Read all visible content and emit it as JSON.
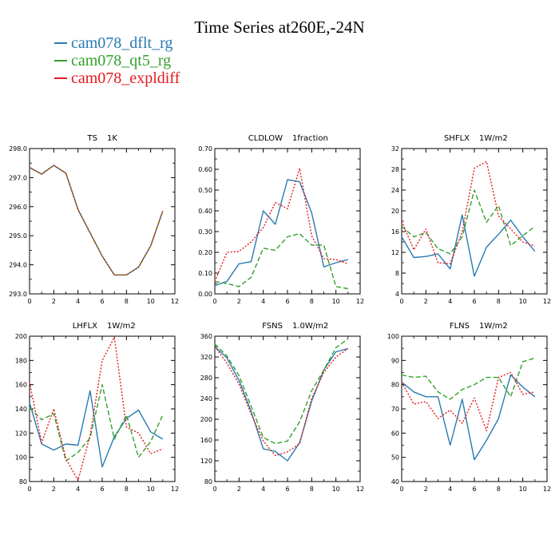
{
  "title": "Time Series at260E,-24N",
  "legend": [
    {
      "name": "cam078_dflt_rg",
      "color": "#2a7ab0"
    },
    {
      "name": "cam078_qt5_rg",
      "color": "#33a02c"
    },
    {
      "name": "cam078_expldiff",
      "color": "#e31a1c"
    }
  ],
  "chart_data": [
    {
      "type": "line",
      "title": "TS",
      "units": "1K",
      "xlim": [
        0,
        12
      ],
      "xticks": [
        0,
        2,
        4,
        6,
        8,
        10,
        12
      ],
      "ylim": [
        293,
        298
      ],
      "yticks": [
        "293.0",
        "294.0",
        "295.0",
        "296.0",
        "297.0",
        "298.0"
      ],
      "x": [
        0,
        1,
        2,
        3,
        4,
        5,
        6,
        7,
        8,
        9,
        10,
        11
      ],
      "series": [
        {
          "name": "cam078_dflt_rg",
          "color": "#2a7ab0",
          "dash": "",
          "values": [
            297.35,
            297.12,
            297.42,
            297.15,
            295.9,
            295.1,
            294.3,
            293.65,
            293.65,
            293.92,
            294.65,
            295.85
          ]
        },
        {
          "name": "cam078_qt5_rg",
          "color": "#33a02c",
          "dash": "6,3",
          "values": [
            297.35,
            297.12,
            297.42,
            297.15,
            295.9,
            295.1,
            294.3,
            293.65,
            293.65,
            293.92,
            294.65,
            295.85
          ]
        },
        {
          "name": "cam078_expldiff",
          "color": "#e31a1c",
          "dash": "2,2",
          "values": [
            297.35,
            297.12,
            297.42,
            297.15,
            295.9,
            295.1,
            294.3,
            293.65,
            293.65,
            293.92,
            294.65,
            295.85
          ]
        }
      ]
    },
    {
      "type": "line",
      "title": "CLDLOW",
      "units": "1fraction",
      "xlim": [
        0,
        12
      ],
      "xticks": [
        0,
        2,
        4,
        6,
        8,
        10,
        12
      ],
      "ylim": [
        0,
        0.7
      ],
      "yticks": [
        "0.00",
        "0.10",
        "0.20",
        "0.30",
        "0.40",
        "0.50",
        "0.60",
        "0.70"
      ],
      "x": [
        0,
        1,
        2,
        3,
        4,
        5,
        6,
        7,
        8,
        9,
        10,
        11
      ],
      "series": [
        {
          "name": "cam078_dflt_rg",
          "color": "#2a7ab0",
          "dash": "",
          "values": [
            0.04,
            0.06,
            0.145,
            0.155,
            0.4,
            0.335,
            0.55,
            0.54,
            0.39,
            0.13,
            0.15,
            0.165
          ]
        },
        {
          "name": "cam078_qt5_rg",
          "color": "#33a02c",
          "dash": "6,3",
          "values": [
            0.06,
            0.05,
            0.035,
            0.08,
            0.22,
            0.21,
            0.275,
            0.29,
            0.235,
            0.235,
            0.035,
            0.025
          ]
        },
        {
          "name": "cam078_expldiff",
          "color": "#e31a1c",
          "dash": "2,2",
          "values": [
            0.06,
            0.2,
            0.205,
            0.25,
            0.32,
            0.44,
            0.41,
            0.605,
            0.28,
            0.17,
            0.165,
            0.145
          ]
        }
      ]
    },
    {
      "type": "line",
      "title": "SHFLX",
      "units": "1W/m2",
      "xlim": [
        0,
        12
      ],
      "xticks": [
        0,
        2,
        4,
        6,
        8,
        10,
        12
      ],
      "ylim": [
        4,
        32
      ],
      "yticks": [
        "4",
        "8",
        "12",
        "16",
        "20",
        "24",
        "28",
        "32"
      ],
      "x": [
        0,
        1,
        2,
        3,
        4,
        5,
        6,
        7,
        8,
        9,
        10,
        11
      ],
      "series": [
        {
          "name": "cam078_dflt_rg",
          "color": "#2a7ab0",
          "dash": "",
          "values": [
            15,
            11,
            11.2,
            11.7,
            8.8,
            19.2,
            7.4,
            13,
            15.5,
            18.2,
            15,
            12.2
          ]
        },
        {
          "name": "cam078_qt5_rg",
          "color": "#33a02c",
          "dash": "6,3",
          "values": [
            17,
            15,
            15.8,
            12.7,
            11.7,
            15,
            24,
            17.8,
            21,
            13.3,
            15.2,
            17
          ]
        },
        {
          "name": "cam078_expldiff",
          "color": "#e31a1c",
          "dash": "2,2",
          "values": [
            18,
            12.5,
            16.5,
            10,
            9.8,
            16,
            28.2,
            29.5,
            19,
            16.5,
            14,
            13.2
          ]
        }
      ]
    },
    {
      "type": "line",
      "title": "LHFLX",
      "units": "1W/m2",
      "xlim": [
        0,
        12
      ],
      "xticks": [
        0,
        2,
        4,
        6,
        8,
        10,
        12
      ],
      "ylim": [
        80,
        200
      ],
      "yticks": [
        "80",
        "100",
        "120",
        "140",
        "160",
        "180",
        "200"
      ],
      "x": [
        0,
        1,
        2,
        3,
        4,
        5,
        6,
        7,
        8,
        9,
        10,
        11
      ],
      "series": [
        {
          "name": "cam078_dflt_rg",
          "color": "#2a7ab0",
          "dash": "",
          "values": [
            145,
            111,
            106,
            111,
            110,
            155,
            92,
            117,
            132,
            139,
            121,
            115
          ]
        },
        {
          "name": "cam078_qt5_rg",
          "color": "#33a02c",
          "dash": "6,3",
          "values": [
            141,
            131,
            136,
            97,
            104,
            116,
            160,
            115,
            135,
            100,
            113,
            135
          ]
        },
        {
          "name": "cam078_expldiff",
          "color": "#e31a1c",
          "dash": "2,2",
          "values": [
            162,
            112,
            140,
            99,
            81,
            118,
            180,
            199,
            125,
            120,
            103,
            107
          ]
        }
      ]
    },
    {
      "type": "line",
      "title": "FSNS",
      "units": "1.0W/m2",
      "xlim": [
        0,
        12
      ],
      "xticks": [
        0,
        2,
        4,
        6,
        8,
        10,
        12
      ],
      "ylim": [
        80,
        360
      ],
      "yticks": [
        "80",
        "120",
        "160",
        "200",
        "240",
        "280",
        "320",
        "360"
      ],
      "x": [
        0,
        1,
        2,
        3,
        4,
        5,
        6,
        7,
        8,
        9,
        10,
        11
      ],
      "series": [
        {
          "name": "cam078_dflt_rg",
          "color": "#2a7ab0",
          "dash": "",
          "values": [
            340,
            318,
            275,
            215,
            143,
            138,
            120,
            155,
            235,
            295,
            330,
            336
          ]
        },
        {
          "name": "cam078_qt5_rg",
          "color": "#33a02c",
          "dash": "6,3",
          "values": [
            345,
            322,
            284,
            225,
            165,
            153,
            158,
            195,
            255,
            295,
            338,
            355
          ]
        },
        {
          "name": "cam078_expldiff",
          "color": "#e31a1c",
          "dash": "2,2",
          "values": [
            340,
            308,
            268,
            210,
            158,
            130,
            137,
            153,
            240,
            290,
            320,
            336
          ]
        }
      ]
    },
    {
      "type": "line",
      "title": "FLNS",
      "units": "1W/m2",
      "xlim": [
        0,
        12
      ],
      "xticks": [
        0,
        2,
        4,
        6,
        8,
        10,
        12
      ],
      "ylim": [
        40,
        100
      ],
      "yticks": [
        "40",
        "50",
        "60",
        "70",
        "80",
        "90",
        "100"
      ],
      "x": [
        0,
        1,
        2,
        3,
        4,
        5,
        6,
        7,
        8,
        9,
        10,
        11
      ],
      "series": [
        {
          "name": "cam078_dflt_rg",
          "color": "#2a7ab0",
          "dash": "",
          "values": [
            81,
            77,
            75,
            75,
            55,
            74,
            49,
            57,
            66,
            84,
            79,
            75
          ]
        },
        {
          "name": "cam078_qt5_rg",
          "color": "#33a02c",
          "dash": "6,3",
          "values": [
            84,
            83,
            83.5,
            77,
            74,
            78,
            80,
            83,
            83,
            75,
            89.5,
            91
          ]
        },
        {
          "name": "cam078_expldiff",
          "color": "#e31a1c",
          "dash": "2,2",
          "values": [
            81,
            72,
            73,
            66,
            69.5,
            64,
            74.5,
            61,
            83,
            85,
            76,
            77
          ]
        }
      ]
    }
  ]
}
